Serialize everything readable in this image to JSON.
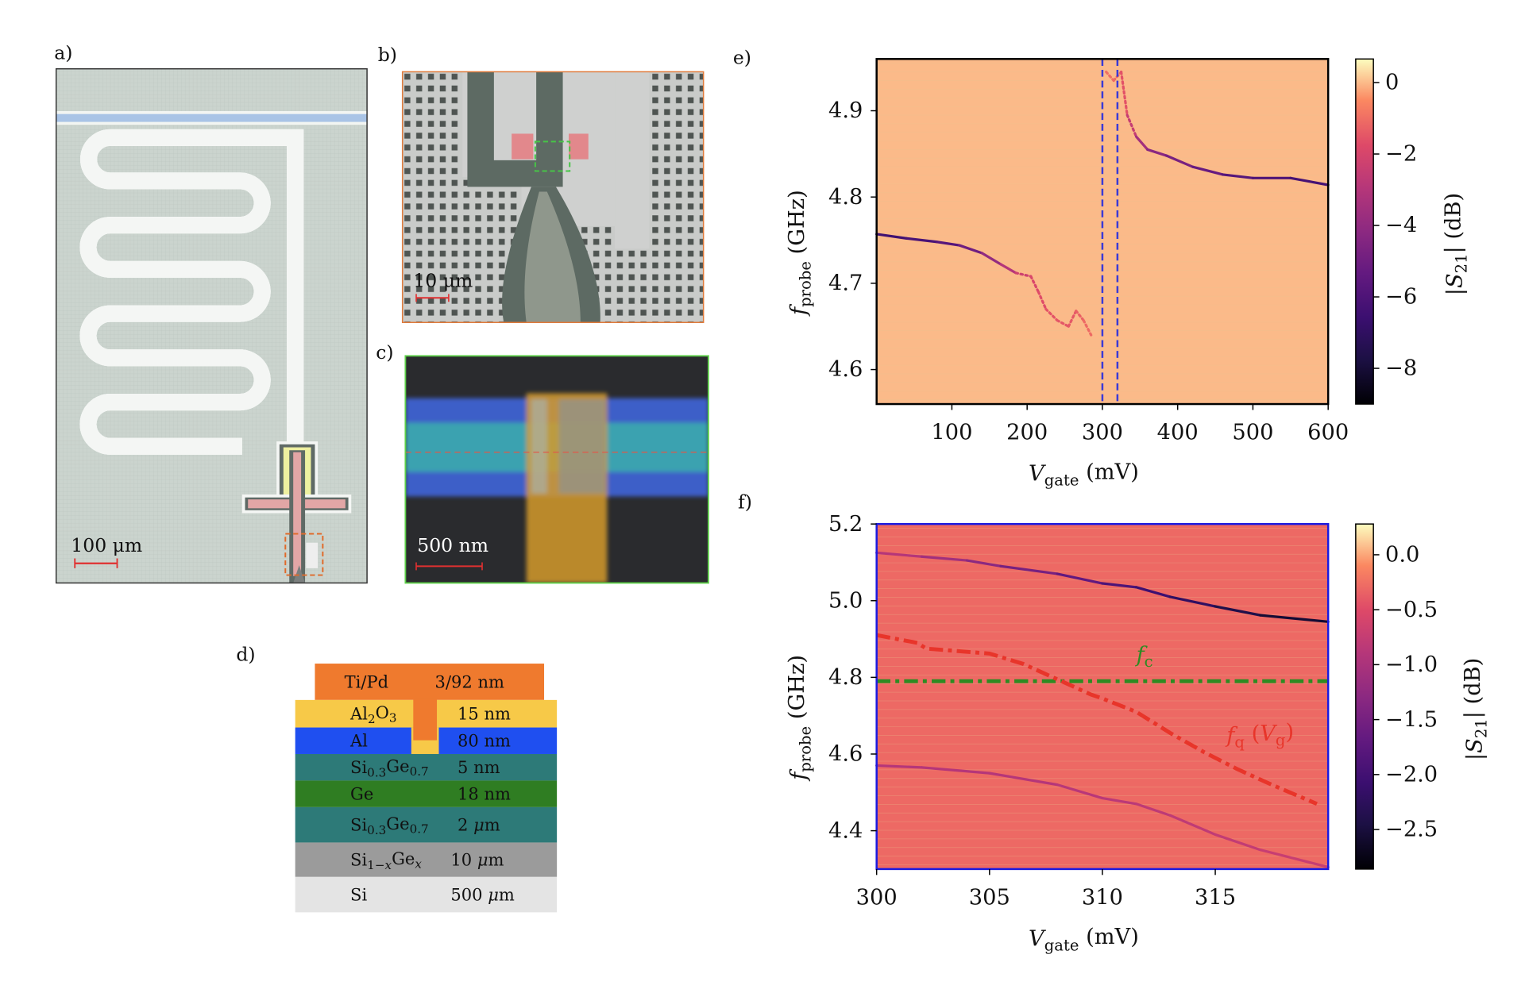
{
  "panel_labels": {
    "a": "a)",
    "b": "b)",
    "c": "c)",
    "d": "d)",
    "e": "e)",
    "f": "f)"
  },
  "panel_a": {
    "scale_bar": "100 μm",
    "colors": {
      "substrate": "#c9d3cc",
      "feedline": "#a9c4e6",
      "metal_gap": "#5f6a66",
      "coupler": "#eef0a0",
      "gate": "#e2a6a6",
      "marker": "#e06a2a"
    }
  },
  "panel_b": {
    "scale_bar": "10 μm",
    "colors": {
      "background": "#c6c8c6",
      "metal": "#5d6a63",
      "gate_pads": "#e2888c",
      "marker": "#47c447"
    }
  },
  "panel_c": {
    "scale_bar": "500 nm",
    "colors": {
      "background": "#2a2b2e",
      "al": "#3d5fc8",
      "channel": "#3aa2b0",
      "gate": "#d49a2c",
      "frame": "#5ecf4a"
    }
  },
  "stack": [
    {
      "material": [
        {
          "text": "Ti/Pd"
        }
      ],
      "thickness": [
        {
          "text": "3/92 nm"
        }
      ],
      "color": "#ef7a2e"
    },
    {
      "material": [
        {
          "text": "Al"
        },
        {
          "text": "2",
          "sub": true
        },
        {
          "text": "O"
        },
        {
          "text": "3",
          "sub": true
        }
      ],
      "thickness": [
        {
          "text": "15 nm"
        }
      ],
      "color": "#f7c948"
    },
    {
      "material": [
        {
          "text": "Al"
        }
      ],
      "thickness": [
        {
          "text": "80 nm"
        }
      ],
      "color": "#1f4ff0"
    },
    {
      "material": [
        {
          "text": "Si"
        },
        {
          "text": "0.3",
          "sub": true
        },
        {
          "text": "Ge"
        },
        {
          "text": "0.7",
          "sub": true
        }
      ],
      "thickness": [
        {
          "text": "5 nm"
        }
      ],
      "color": "#2d7a78"
    },
    {
      "material": [
        {
          "text": "Ge"
        }
      ],
      "thickness": [
        {
          "text": "18 nm"
        }
      ],
      "color": "#2f7d22"
    },
    {
      "material": [
        {
          "text": "Si"
        },
        {
          "text": "0.3",
          "sub": true
        },
        {
          "text": "Ge"
        },
        {
          "text": "0.7",
          "sub": true
        }
      ],
      "thickness": [
        {
          "text": "2 "
        },
        {
          "text": "μ",
          "italic": true
        },
        {
          "text": "m"
        }
      ],
      "color": "#2d7a78"
    },
    {
      "material": [
        {
          "text": "Si"
        },
        {
          "text": "1−",
          "sub": true
        },
        {
          "text": "x",
          "sub": true,
          "italic": true
        },
        {
          "text": "Ge"
        },
        {
          "text": "x",
          "sub": true,
          "italic": true
        }
      ],
      "thickness": [
        {
          "text": "10 "
        },
        {
          "text": "μ",
          "italic": true
        },
        {
          "text": "m"
        }
      ],
      "color": "#9b9b9b"
    },
    {
      "material": [
        {
          "text": "Si"
        }
      ],
      "thickness": [
        {
          "text": "500 "
        },
        {
          "text": "μ",
          "italic": true
        },
        {
          "text": "m"
        }
      ],
      "color": "#e4e4e4"
    }
  ],
  "chart_data": [
    {
      "id": "e",
      "type": "heatmap",
      "xlabel": [
        {
          "text": "V",
          "italic": true
        },
        {
          "text": "gate",
          "sub": true
        },
        {
          "text": " (mV)"
        }
      ],
      "ylabel": [
        {
          "text": "f",
          "italic": true
        },
        {
          "text": "probe",
          "sub": true
        },
        {
          "text": " (GHz)"
        }
      ],
      "colorbar_label": [
        {
          "text": "|"
        },
        {
          "text": "S",
          "italic": true
        },
        {
          "text": "21",
          "sub": true
        },
        {
          "text": "| (dB)"
        }
      ],
      "xlim": [
        0,
        600
      ],
      "ylim": [
        4.56,
        4.96
      ],
      "xticks": [
        100,
        200,
        300,
        400,
        500,
        600
      ],
      "xtick_labels": [
        "100",
        "200",
        "300",
        "400",
        "500",
        "600"
      ],
      "yticks": [
        4.6,
        4.7,
        4.8,
        4.9
      ],
      "ytick_labels": [
        "4.6",
        "4.7",
        "4.8",
        "4.9"
      ],
      "colorbar": {
        "colormap": "magma",
        "range": [
          -9.0,
          0.66
        ],
        "ticks": [
          0,
          -2,
          -4,
          -6,
          -8
        ],
        "tick_labels": [
          "0",
          "−2",
          "−4",
          "−6",
          "−8"
        ]
      },
      "background_db": 0,
      "frame_color": "#000000",
      "resonances": [
        {
          "points": [
            [
              0,
              4.757
            ],
            [
              40,
              4.752
            ],
            [
              80,
              4.748
            ],
            [
              110,
              4.744
            ],
            [
              140,
              4.735
            ],
            [
              165,
              4.722
            ],
            [
              185,
              4.712
            ],
            [
              205,
              4.708
            ],
            [
              215,
              4.69
            ],
            [
              225,
              4.67
            ],
            [
              240,
              4.657
            ],
            [
              255,
              4.65
            ],
            [
              265,
              4.668
            ],
            [
              275,
              4.657
            ],
            [
              285,
              4.64
            ]
          ],
          "depth_db": [
            -6.5,
            -6.3,
            -6,
            -5.5,
            -4.5,
            -3.5,
            -2.5,
            -2,
            -1.8,
            -1.6,
            -1.5,
            -1.5,
            -1.4,
            -1.2,
            -1
          ]
        },
        {
          "points": [
            [
              305,
              4.945
            ],
            [
              315,
              4.935
            ],
            [
              325,
              4.945
            ],
            [
              333,
              4.895
            ],
            [
              345,
              4.87
            ],
            [
              360,
              4.855
            ],
            [
              385,
              4.848
            ],
            [
              420,
              4.835
            ],
            [
              460,
              4.826
            ],
            [
              500,
              4.822
            ],
            [
              550,
              4.822
            ],
            [
              600,
              4.814
            ]
          ],
          "depth_db": [
            -1,
            -1,
            -1.2,
            -2,
            -3,
            -4,
            -4.5,
            -5,
            -5.5,
            -6,
            -6,
            -6.5
          ]
        }
      ],
      "markers": {
        "vertical_dashed_lines": [
          300,
          320
        ],
        "color": "#3a3ad6"
      }
    },
    {
      "id": "f",
      "type": "heatmap",
      "xlabel": [
        {
          "text": "V",
          "italic": true
        },
        {
          "text": "gate",
          "sub": true
        },
        {
          "text": " (mV)"
        }
      ],
      "ylabel": [
        {
          "text": "f",
          "italic": true
        },
        {
          "text": "probe",
          "sub": true
        },
        {
          "text": " (GHz)"
        }
      ],
      "colorbar_label": [
        {
          "text": "|"
        },
        {
          "text": "S",
          "italic": true
        },
        {
          "text": "21",
          "sub": true
        },
        {
          "text": "| (dB)"
        }
      ],
      "xlim": [
        300,
        320
      ],
      "ylim": [
        4.3,
        5.2
      ],
      "xticks": [
        300,
        305,
        310,
        315
      ],
      "xtick_labels": [
        "300",
        "305",
        "310",
        "315"
      ],
      "yticks": [
        4.4,
        4.6,
        4.8,
        5.0,
        5.2
      ],
      "ytick_labels": [
        "4.4",
        "4.6",
        "4.8",
        "5.0",
        "5.2"
      ],
      "colorbar": {
        "colormap": "magma",
        "range": [
          -2.86,
          0.28
        ],
        "ticks": [
          0,
          -0.5,
          -1,
          -1.5,
          -2,
          -2.5
        ],
        "tick_labels": [
          "0.0",
          "−0.5",
          "−1.0",
          "−1.5",
          "−2.0",
          "−2.5"
        ]
      },
      "background_db": -0.3,
      "frame_color": "#1a1ae0",
      "resonances": [
        {
          "points": [
            [
              300,
              5.125
            ],
            [
              302,
              5.115
            ],
            [
              304,
              5.105
            ],
            [
              305.5,
              5.09
            ],
            [
              308,
              5.07
            ],
            [
              310,
              5.045
            ],
            [
              311.5,
              5.035
            ],
            [
              313,
              5.01
            ],
            [
              315,
              4.985
            ],
            [
              317,
              4.962
            ],
            [
              320,
              4.945
            ]
          ],
          "depth_db": [
            -0.8,
            -1,
            -1.2,
            -1.4,
            -1.6,
            -1.8,
            -2,
            -2.1,
            -2.3,
            -2.5,
            -2.6
          ]
        },
        {
          "points": [
            [
              300,
              4.57
            ],
            [
              302,
              4.565
            ],
            [
              305,
              4.55
            ],
            [
              308,
              4.52
            ],
            [
              310,
              4.485
            ],
            [
              311.5,
              4.47
            ],
            [
              313,
              4.44
            ],
            [
              315,
              4.39
            ],
            [
              317,
              4.35
            ],
            [
              320,
              4.305
            ]
          ],
          "depth_db": [
            -0.9,
            -0.9,
            -0.9,
            -0.9,
            -0.85,
            -0.85,
            -0.8,
            -0.8,
            -0.75,
            -0.7
          ]
        }
      ],
      "guides": [
        {
          "name": "fc",
          "label": [
            {
              "text": "f",
              "italic": true
            },
            {
              "text": "c",
              "sub": true
            }
          ],
          "style": "dash-dot",
          "color": "#2e8b22",
          "points": [
            [
              300,
              4.79
            ],
            [
              320,
              4.79
            ]
          ]
        },
        {
          "name": "fq",
          "label": [
            {
              "text": "f",
              "italic": true
            },
            {
              "text": "q",
              "sub": true
            },
            {
              "text": " ("
            },
            {
              "text": "V",
              "italic": true
            },
            {
              "text": "g",
              "sub": true
            },
            {
              "text": ")"
            }
          ],
          "style": "dash-dot",
          "color": "#e8352a",
          "points": [
            [
              300,
              4.91
            ],
            [
              301.8,
              4.89
            ],
            [
              302.2,
              4.875
            ],
            [
              305,
              4.862
            ],
            [
              306.5,
              4.835
            ],
            [
              308,
              4.795
            ],
            [
              309.5,
              4.755
            ],
            [
              310,
              4.745
            ],
            [
              311.5,
              4.71
            ],
            [
              313,
              4.655
            ],
            [
              314.5,
              4.605
            ],
            [
              316,
              4.56
            ],
            [
              317.5,
              4.52
            ],
            [
              319.5,
              4.47
            ]
          ]
        }
      ]
    }
  ]
}
